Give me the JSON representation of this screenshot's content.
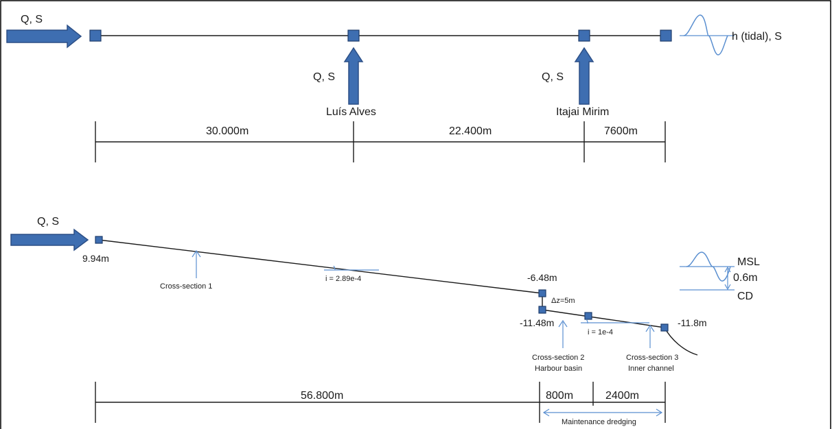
{
  "top": {
    "inflow_main": "Q, S",
    "inflow_trib1": "Q, S",
    "inflow_trib2": "Q, S",
    "boundary": "h (tidal), S",
    "trib1_name": "Luís Alves",
    "trib2_name": "Itajai Mirim",
    "dist1": "30.000m",
    "dist2": "22.400m",
    "dist3": "7600m"
  },
  "bottom": {
    "inflow_main": "Q, S",
    "elev_start": "9.94m",
    "elev_step_top": "-6.48m",
    "step_dz": "Δz=5m",
    "elev_step_bottom": "-11.48m",
    "elev_end": "-11.8m",
    "slope1": "i = 2.89e-4",
    "slope2": "i = 1e-4",
    "cs1": "Cross-section 1",
    "cs2_line1": "Cross-section 2",
    "cs2_line2": "Harbour basin",
    "cs3_line1": "Cross-section 3",
    "cs3_line2": "Inner channel",
    "msl": "MSL",
    "tide_range": "0.6m",
    "cd": "CD",
    "dist1": "56.800m",
    "dist2": "800m",
    "dist3": "2400m",
    "dredging": "Maintenance dredging"
  },
  "colors": {
    "arrow": "#3e6eb1",
    "line": "#1a1a1a",
    "annotation": "#5a8fd0"
  }
}
